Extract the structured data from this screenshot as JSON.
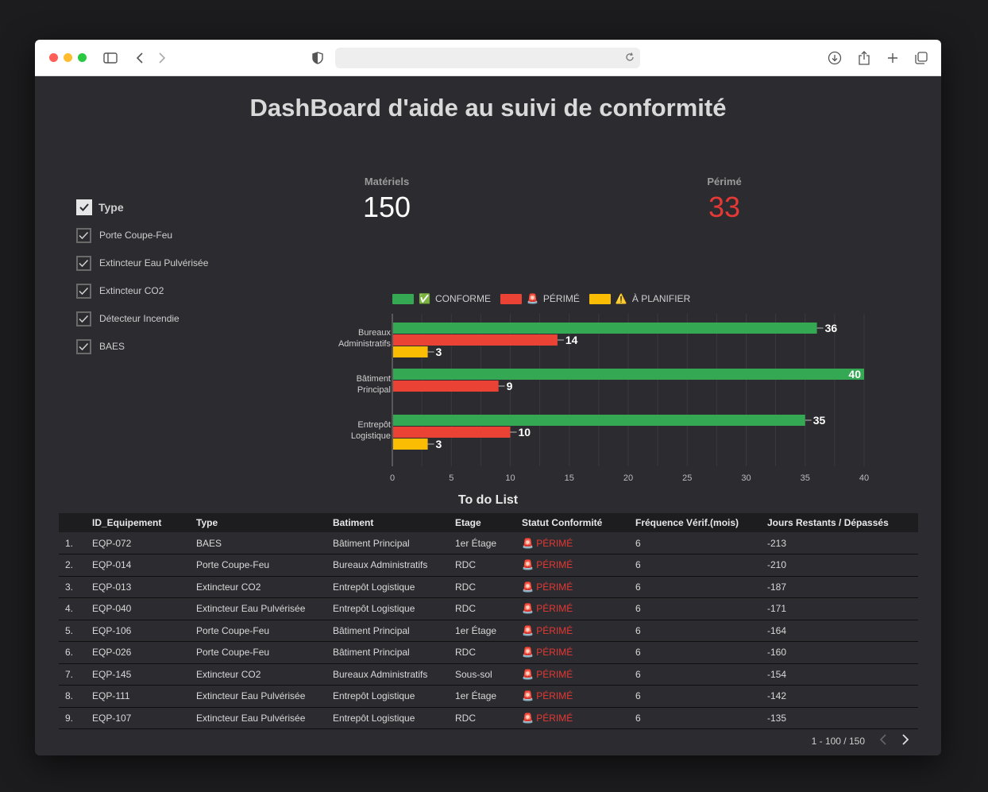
{
  "page": {
    "title": "DashBoard d'aide au suivi de conformité"
  },
  "filter": {
    "header": "Type",
    "items": [
      "Porte Coupe-Feu",
      "Extincteur Eau Pulvérisée",
      "Extincteur CO2",
      "Détecteur Incendie",
      "BAES"
    ]
  },
  "kpis": {
    "materiels": {
      "label": "Matériels",
      "value": "150"
    },
    "perime": {
      "label": "Périmé",
      "value": "33",
      "color": "#e53935"
    }
  },
  "chart_data": {
    "type": "bar",
    "orientation": "horizontal",
    "categories": [
      "Bureaux Administratifs",
      "Bâtiment Principal",
      "Entrepôt Logistique"
    ],
    "category_lines": [
      [
        "Bureaux",
        "Administratifs"
      ],
      [
        "Bâtiment",
        "Principal"
      ],
      [
        "Entrepôt",
        "Logistique"
      ]
    ],
    "series": [
      {
        "name": "CONFORME",
        "icon": "✅",
        "color": "#34a853",
        "values": [
          36,
          40,
          35
        ]
      },
      {
        "name": "PÉRIMÉ",
        "icon": "🚨",
        "color": "#ea4335",
        "values": [
          14,
          9,
          10
        ]
      },
      {
        "name": "À PLANIFIER",
        "icon": "⚠️",
        "color": "#fbbc04",
        "values": [
          3,
          0,
          3
        ]
      }
    ],
    "xlim": [
      0,
      40
    ],
    "xticks": [
      "0",
      "5",
      "10",
      "15",
      "20",
      "25",
      "30",
      "35",
      "40"
    ],
    "grid": true,
    "legend": "top"
  },
  "todo": {
    "title": "To do List",
    "columns": [
      "",
      "ID_Equipement",
      "Type",
      "Batiment",
      "Etage",
      "Statut Conformité",
      "Fréquence Vérif.(mois)",
      "Jours Restants / Dépassés"
    ],
    "rows": [
      [
        "1.",
        "EQP-072",
        "BAES",
        "Bâtiment Principal",
        "1er Étage",
        "🚨 PÉRIMÉ",
        "6",
        "-213"
      ],
      [
        "2.",
        "EQP-014",
        "Porte Coupe-Feu",
        "Bureaux Administratifs",
        "RDC",
        "🚨 PÉRIMÉ",
        "6",
        "-210"
      ],
      [
        "3.",
        "EQP-013",
        "Extincteur CO2",
        "Entrepôt Logistique",
        "RDC",
        "🚨 PÉRIMÉ",
        "6",
        "-187"
      ],
      [
        "4.",
        "EQP-040",
        "Extincteur Eau Pulvérisée",
        "Entrepôt Logistique",
        "RDC",
        "🚨 PÉRIMÉ",
        "6",
        "-171"
      ],
      [
        "5.",
        "EQP-106",
        "Porte Coupe-Feu",
        "Bâtiment Principal",
        "1er Étage",
        "🚨 PÉRIMÉ",
        "6",
        "-164"
      ],
      [
        "6.",
        "EQP-026",
        "Porte Coupe-Feu",
        "Bâtiment Principal",
        "RDC",
        "🚨 PÉRIMÉ",
        "6",
        "-160"
      ],
      [
        "7.",
        "EQP-145",
        "Extincteur CO2",
        "Bureaux Administratifs",
        "Sous-sol",
        "🚨 PÉRIMÉ",
        "6",
        "-154"
      ],
      [
        "8.",
        "EQP-111",
        "Extincteur Eau Pulvérisée",
        "Entrepôt Logistique",
        "1er Étage",
        "🚨 PÉRIMÉ",
        "6",
        "-142"
      ],
      [
        "9.",
        "EQP-107",
        "Extincteur Eau Pulvérisée",
        "Entrepôt Logistique",
        "RDC",
        "🚨 PÉRIMÉ",
        "6",
        "-135"
      ]
    ],
    "pagination": "1 - 100 / 150"
  }
}
